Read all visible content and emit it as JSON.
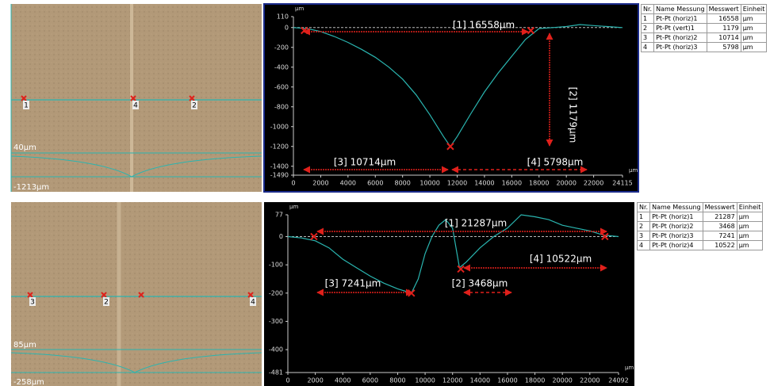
{
  "chart_data": [
    {
      "type": "line",
      "xlabel": "µm",
      "ylabel": "µm",
      "x": [
        0,
        1000,
        2000,
        3000,
        4000,
        5000,
        6000,
        7000,
        8000,
        9000,
        10000,
        11000,
        11500,
        12000,
        13000,
        14000,
        15000,
        16000,
        17000,
        18000,
        19000,
        20000,
        21000,
        22000,
        23000,
        24115
      ],
      "values": [
        0,
        -10,
        -40,
        -90,
        -150,
        -220,
        -300,
        -400,
        -520,
        -680,
        -880,
        -1100,
        -1200,
        -1100,
        -870,
        -650,
        -460,
        -290,
        -120,
        -10,
        0,
        10,
        30,
        20,
        10,
        0
      ],
      "color": "#2ab5b0",
      "marker_color": "#e0201b",
      "zero_line": true,
      "markers": {
        "x": [
          800,
          17400,
          11500
        ],
        "y": [
          -30,
          -30,
          -1200
        ]
      },
      "annotations": [
        "[1] 16558µm",
        "[2] 1179µm",
        "[3] 10714µm",
        "[4] 5798µm"
      ],
      "xlim": [
        0,
        24115
      ],
      "ylim": [
        -1490,
        110
      ],
      "xticks": [
        0,
        2000,
        4000,
        6000,
        8000,
        10000,
        12000,
        14000,
        16000,
        18000,
        20000,
        22000,
        24115
      ],
      "yticks": [
        110,
        0,
        -200,
        -400,
        -600,
        -800,
        -1000,
        -1200,
        -1400,
        -1490
      ]
    },
    {
      "type": "line",
      "xlabel": "µm",
      "ylabel": "µm",
      "x": [
        0,
        1000,
        2000,
        3000,
        4000,
        5000,
        6000,
        7000,
        8000,
        9000,
        9500,
        10000,
        10500,
        11000,
        11500,
        12000,
        12500,
        13000,
        14000,
        15000,
        16000,
        17000,
        18000,
        19000,
        20000,
        21000,
        22000,
        23000,
        24092
      ],
      "values": [
        0,
        -5,
        -15,
        -40,
        -80,
        -110,
        -140,
        -165,
        -185,
        -200,
        -150,
        -60,
        0,
        40,
        60,
        30,
        -110,
        -90,
        -40,
        0,
        30,
        77,
        70,
        60,
        40,
        30,
        20,
        5,
        0
      ],
      "color": "#2ab5b0",
      "marker_color": "#e0201b",
      "zero_line": true,
      "markers": {
        "x": [
          1900,
          9000,
          12600,
          23100
        ],
        "y": [
          0,
          -200,
          -115,
          0
        ]
      },
      "annotations": [
        "[1] 21287µm",
        "[2] 3468µm",
        "[3] 7241µm",
        "[4] 10522µm"
      ],
      "xlim": [
        0,
        24092
      ],
      "ylim": [
        -481,
        77
      ],
      "xticks": [
        0,
        2000,
        4000,
        6000,
        8000,
        10000,
        12000,
        14000,
        16000,
        18000,
        20000,
        22000,
        24092
      ],
      "yticks": [
        77,
        0,
        -100,
        -200,
        -300,
        -400,
        -481
      ]
    }
  ],
  "images": [
    {
      "marker_labels": [
        "1",
        "4",
        "2"
      ],
      "top_label": "40µm",
      "bottom_label": "-1213µm"
    },
    {
      "marker_labels": [
        "3",
        "2",
        "4"
      ],
      "top_label": "85µm",
      "bottom_label": "-258µm"
    }
  ],
  "tables": [
    {
      "header": [
        "Nr.",
        "Name Messung",
        "Messwert",
        "Einheit"
      ],
      "rows": [
        [
          "1",
          "Pt-Pt (horiz)1",
          16558,
          "µm"
        ],
        [
          "2",
          "Pt-Pt (vert)1",
          1179,
          "µm"
        ],
        [
          "3",
          "Pt-Pt (horiz)2",
          10714,
          "µm"
        ],
        [
          "4",
          "Pt-Pt (horiz)3",
          5798,
          "µm"
        ]
      ]
    },
    {
      "header": [
        "Nr.",
        "Name Messung",
        "Messwert",
        "Einheit"
      ],
      "rows": [
        [
          "1",
          "Pt-Pt (horiz)1",
          21287,
          "µm"
        ],
        [
          "2",
          "Pt-Pt (horiz)2",
          3468,
          "µm"
        ],
        [
          "3",
          "Pt-Pt (horiz)3",
          7241,
          "µm"
        ],
        [
          "4",
          "Pt-Pt (horiz)4",
          10522,
          "µm"
        ]
      ]
    }
  ]
}
